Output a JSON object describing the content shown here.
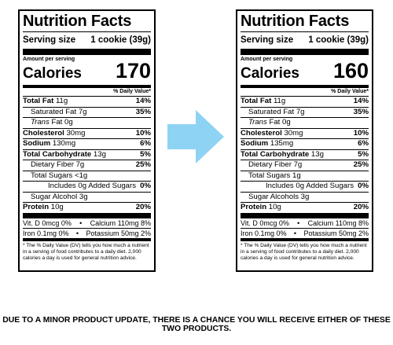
{
  "labels": [
    {
      "title": "Nutrition Facts",
      "serving_label": "Serving size",
      "serving_value": "1 cookie (39g)",
      "amount_per_serving": "Amount per serving",
      "calories_label": "Calories",
      "calories_value": "170",
      "dv_header": "% Daily Value*",
      "total_fat": {
        "name": "Total Fat",
        "amount": "11g",
        "dv": "14%"
      },
      "sat_fat": {
        "name": "Saturated Fat",
        "amount": "7g",
        "dv": "35%"
      },
      "trans_fat": {
        "name": "Trans",
        "amount": "Fat 0g"
      },
      "cholesterol": {
        "name": "Cholesterol",
        "amount": "30mg",
        "dv": "10%"
      },
      "sodium": {
        "name": "Sodium",
        "amount": "130mg",
        "dv": "6%"
      },
      "total_carb": {
        "name": "Total Carbohydrate",
        "amount": "13g",
        "dv": "5%"
      },
      "fiber": {
        "name": "Dietary Fiber",
        "amount": "7g",
        "dv": "25%"
      },
      "sugars": {
        "text": "Total Sugars <1g"
      },
      "added_sugars": {
        "text": "Includes 0g Added Sugars",
        "dv": "0%"
      },
      "sugar_alcohol": {
        "text": "Sugar Alcohol 3g"
      },
      "protein": {
        "name": "Protein",
        "amount": "10g",
        "dv": "20%"
      },
      "vit_d": "Vit. D 0mcg 0%",
      "bullet": "•",
      "calcium": "Calcium 110mg 8%",
      "iron": "Iron 0.1mg 0%",
      "potassium": "Potassium 50mg 2%",
      "footnote": "* The % Daily Value (DV) tells you how much a nutrient in a serving of food contributes to a daily diet. 2,000 calories a day is used for general nutrition advice."
    },
    {
      "title": "Nutrition Facts",
      "serving_label": "Serving size",
      "serving_value": "1 cookie (39g)",
      "amount_per_serving": "Amount per serving",
      "calories_label": "Calories",
      "calories_value": "160",
      "dv_header": "% Daily Value*",
      "total_fat": {
        "name": "Total Fat",
        "amount": "11g",
        "dv": "14%"
      },
      "sat_fat": {
        "name": "Saturated Fat",
        "amount": "7g",
        "dv": "35%"
      },
      "trans_fat": {
        "name": "Trans",
        "amount": "Fat 0g"
      },
      "cholesterol": {
        "name": "Cholesterol",
        "amount": "30mg",
        "dv": "10%"
      },
      "sodium": {
        "name": "Sodium",
        "amount": "135mg",
        "dv": "6%"
      },
      "total_carb": {
        "name": "Total Carbohydrate",
        "amount": "13g",
        "dv": "5%"
      },
      "fiber": {
        "name": "Dietary Fiber",
        "amount": "7g",
        "dv": "25%"
      },
      "sugars": {
        "text": "Total Sugars 1g"
      },
      "added_sugars": {
        "text": "Includes 0g Added Sugars",
        "dv": "0%"
      },
      "sugar_alcohol": {
        "text": "Sugar Alcohols 3g"
      },
      "protein": {
        "name": "Protein",
        "amount": "10g",
        "dv": "20%"
      },
      "vit_d": "Vit. D 0mcg 0%",
      "bullet": "•",
      "calcium": "Calcium 110mg 8%",
      "iron": "Iron 0.1mg 0%",
      "potassium": "Potassium 50mg 2%",
      "footnote": "* The % Daily Value (DV) tells you how much a nutrient in a serving of food contributes to a daily diet. 2,000 calories a day is used for general nutrition advice."
    }
  ],
  "arrow": {
    "icon": "right-arrow-icon",
    "color": "#8fd3f4"
  },
  "notice": "DUE TO A MINOR PRODUCT UPDATE, THERE IS A CHANCE YOU WILL RECEIVE EITHER OF THESE TWO PRODUCTS."
}
